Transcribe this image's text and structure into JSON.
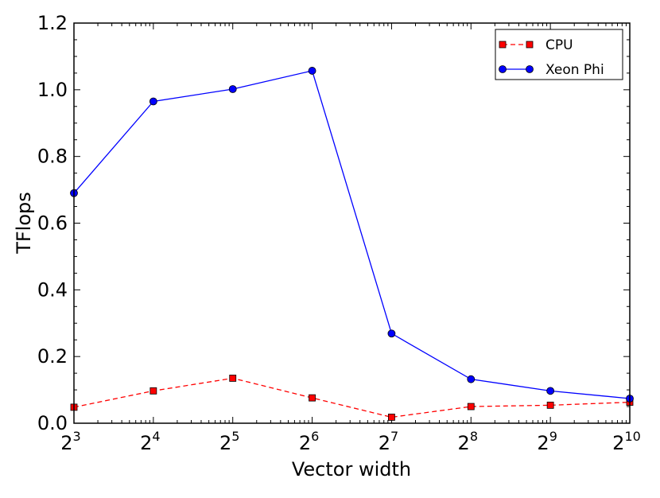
{
  "chart_data": {
    "type": "line",
    "title": "",
    "xlabel": "Vector width",
    "ylabel": "TFlops",
    "x_base": "2",
    "x_exponents": [
      "3",
      "4",
      "5",
      "6",
      "7",
      "8",
      "9",
      "10"
    ],
    "x": [
      8,
      16,
      32,
      64,
      128,
      256,
      512,
      1024
    ],
    "y_ticks": [
      "0.0",
      "0.2",
      "0.4",
      "0.6",
      "0.8",
      "1.0",
      "1.2"
    ],
    "ylim": [
      0,
      1.2
    ],
    "grid": false,
    "legend_position": "top-right",
    "series": [
      {
        "name": "CPU",
        "color": "#ff0000",
        "marker": "square",
        "line_style": "dashed",
        "values": [
          0.048,
          0.097,
          0.135,
          0.076,
          0.018,
          0.05,
          0.054,
          0.063
        ]
      },
      {
        "name": "Xeon Phi",
        "color": "#0000ff",
        "marker": "circle",
        "line_style": "solid",
        "values": [
          0.69,
          0.965,
          1.002,
          1.057,
          0.269,
          0.132,
          0.097,
          0.074
        ]
      }
    ]
  }
}
